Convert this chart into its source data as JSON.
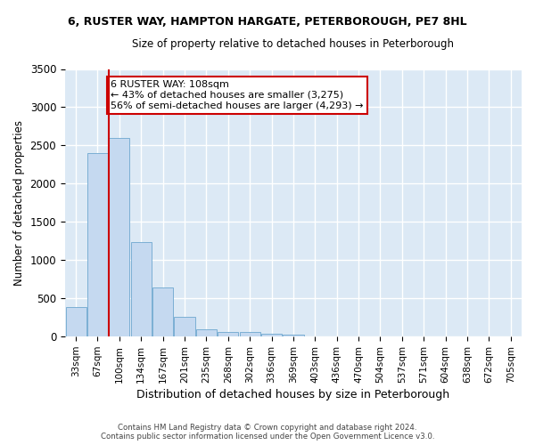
{
  "title1": "6, RUSTER WAY, HAMPTON HARGATE, PETERBOROUGH, PE7 8HL",
  "title2": "Size of property relative to detached houses in Peterborough",
  "xlabel": "Distribution of detached houses by size in Peterborough",
  "ylabel": "Number of detached properties",
  "categories": [
    "33sqm",
    "67sqm",
    "100sqm",
    "134sqm",
    "167sqm",
    "201sqm",
    "235sqm",
    "268sqm",
    "302sqm",
    "336sqm",
    "369sqm",
    "403sqm",
    "436sqm",
    "470sqm",
    "504sqm",
    "537sqm",
    "571sqm",
    "604sqm",
    "638sqm",
    "672sqm",
    "705sqm"
  ],
  "values": [
    390,
    2400,
    2600,
    1240,
    640,
    260,
    100,
    60,
    55,
    40,
    30,
    0,
    0,
    0,
    0,
    0,
    0,
    0,
    0,
    0,
    0
  ],
  "bar_color": "#c5d9f0",
  "bar_edge_color": "#7bafd4",
  "highlight_bar_index": 2,
  "highlight_line_color": "#cc0000",
  "annotation_line1": "6 RUSTER WAY: 108sqm",
  "annotation_line2": "← 43% of detached houses are smaller (3,275)",
  "annotation_line3": "56% of semi-detached houses are larger (4,293) →",
  "annotation_box_facecolor": "#ffffff",
  "annotation_box_edgecolor": "#cc0000",
  "ylim": [
    0,
    3500
  ],
  "yticks": [
    0,
    500,
    1000,
    1500,
    2000,
    2500,
    3000,
    3500
  ],
  "bg_color": "#dce9f5",
  "grid_color": "#ffffff",
  "fig_bg_color": "#ffffff",
  "footer1": "Contains HM Land Registry data © Crown copyright and database right 2024.",
  "footer2": "Contains public sector information licensed under the Open Government Licence v3.0."
}
